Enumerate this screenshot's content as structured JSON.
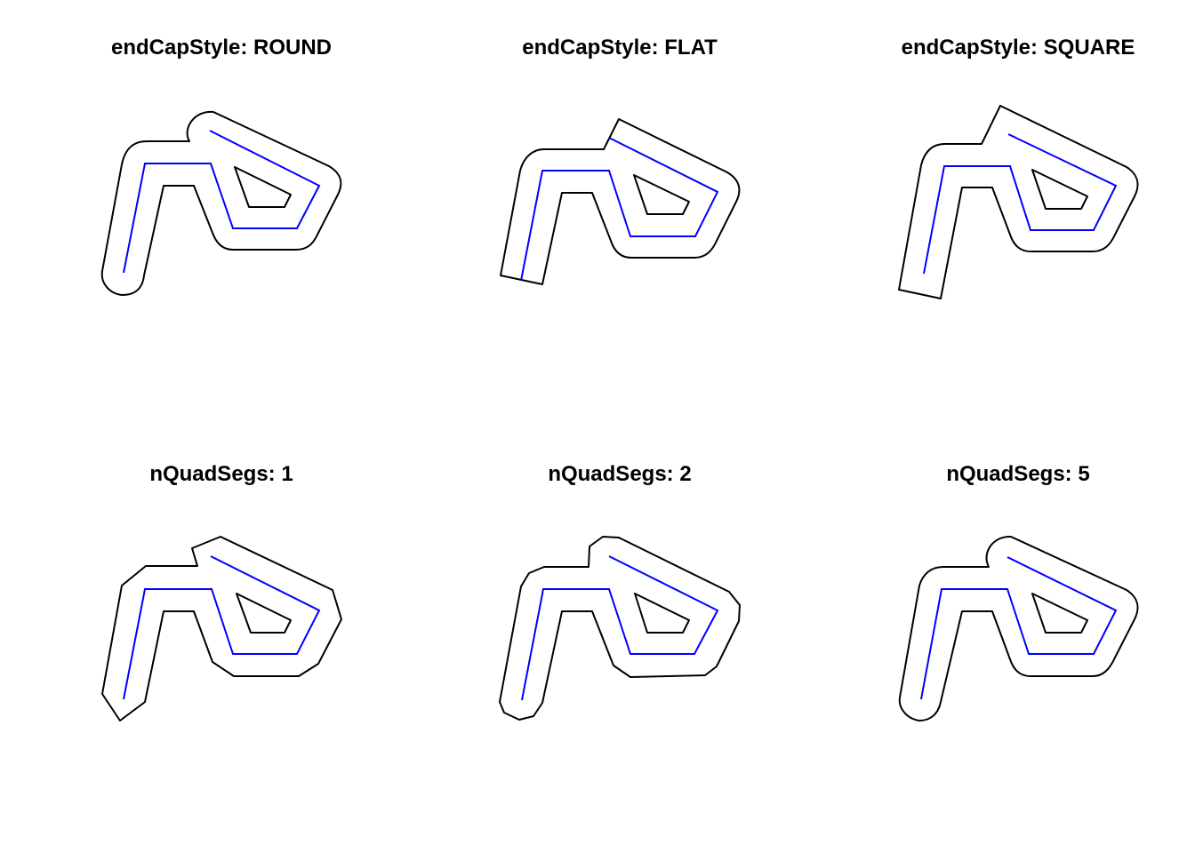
{
  "figure": {
    "panels": [
      {
        "title": "endCapStyle: ROUND"
      },
      {
        "title": "endCapStyle: FLAT"
      },
      {
        "title": "endCapStyle: SQUARE"
      },
      {
        "title": "nQuadSegs: 1"
      },
      {
        "title": "nQuadSegs: 2"
      },
      {
        "title": "nQuadSegs: 5"
      }
    ],
    "colors": {
      "buffer_outline": "#000000",
      "line": "#0000ff",
      "background": "#ffffff"
    }
  }
}
